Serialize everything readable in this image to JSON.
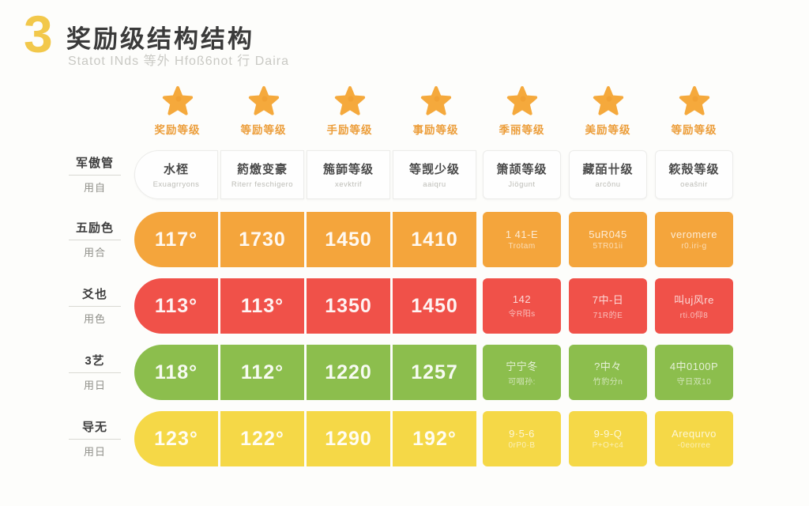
{
  "header": {
    "number": "3",
    "title": "奖励级结构结构",
    "subtitle": "Statot INds 等外 Hfoß6not 行 Daira"
  },
  "colors": {
    "accent_yellow": "#F2C84B",
    "star_orange": "#F5A93C",
    "column_label_orange": "#EC9E3B",
    "row_orange": "#F4A53C",
    "row_red": "#F05149",
    "row_green": "#8CBE4D",
    "row_yellow": "#F5D847",
    "header_cell_bg": "#FEFEFE"
  },
  "columns": [
    {
      "icon": "star-icon",
      "label": "奖励等级"
    },
    {
      "icon": "star-icon",
      "label": "等励等级"
    },
    {
      "icon": "star-icon",
      "label": "手励等级"
    },
    {
      "icon": "star-icon",
      "label": "事励等级"
    },
    {
      "icon": "star-icon",
      "label": "季丽等级"
    },
    {
      "icon": "star-icon",
      "label": "美励等级"
    },
    {
      "icon": "star-icon",
      "label": "等励等级"
    }
  ],
  "header_row": {
    "label": {
      "top": "军傲管",
      "bottom": "用自"
    },
    "cells": [
      {
        "title": "水桎",
        "sub": "Exuagrryons"
      },
      {
        "title": "箹燩变豪",
        "sub": "Riterr feschigero"
      },
      {
        "title": "箷韴等级",
        "sub": "xevktrif"
      },
      {
        "title": "等觊少级",
        "sub": "aaiqru"
      },
      {
        "title": "箫颉等级",
        "sub": "Jiögunt"
      },
      {
        "title": "藏皕卄级",
        "sub": "arcônu"
      },
      {
        "title": "篍殻等级",
        "sub": "oeaŝnir"
      }
    ]
  },
  "rows": [
    {
      "name": "orange-row",
      "color": "#F4A53C",
      "label": {
        "top": "五励色",
        "bottom": "用合"
      },
      "cells": [
        "117°",
        "1730",
        "1450",
        "1410",
        {
          "line1": "1 41-E",
          "line2": "Trotam"
        },
        {
          "line1": "5uR045",
          "line2": "5TR01ii"
        },
        {
          "line1": "veromere",
          "line2": "r0.iri-g"
        }
      ]
    },
    {
      "name": "red-row",
      "color": "#F05149",
      "label": {
        "top": "爻也",
        "bottom": "用色"
      },
      "cells": [
        "113°",
        "113°",
        "1350",
        "1450",
        {
          "line1": "142",
          "line2": "令R阳s"
        },
        {
          "line1": "7中-日",
          "line2": "71R的E"
        },
        {
          "line1": "叫uj风re",
          "line2": "rti.0仰8"
        }
      ]
    },
    {
      "name": "green-row",
      "color": "#8CBE4D",
      "label": {
        "top": "3艺",
        "bottom": "用日"
      },
      "cells": [
        "118°",
        "112°",
        "1220",
        "1257",
        {
          "line1": "宁宁冬",
          "line2": "可咽孙:"
        },
        {
          "line1": "?中々",
          "line2": "竹豹分n"
        },
        {
          "line1": "4中0100P",
          "line2": "守日双10"
        }
      ]
    },
    {
      "name": "yellow-row",
      "color": "#F5D847",
      "label": {
        "top": "导无",
        "bottom": "用日"
      },
      "cells": [
        "123°",
        "122°",
        "1290",
        "192°",
        {
          "line1": "9·5-6",
          "line2": "0rP0·B"
        },
        {
          "line1": "9-9-Q",
          "line2": "P+O+c4"
        },
        {
          "line1": "Arequrvo",
          "line2": "-0eorree"
        }
      ]
    }
  ]
}
